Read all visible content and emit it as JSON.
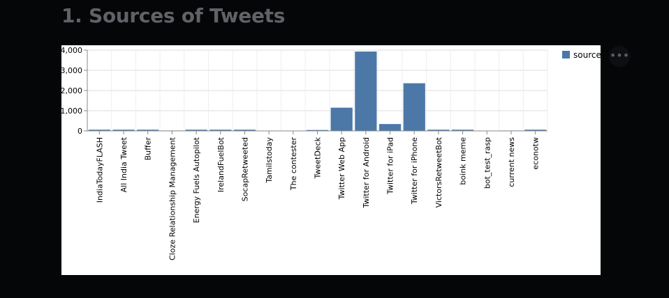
{
  "page": {
    "heading": "1. Sources of Tweets",
    "menu_icon": "more-horizontal-icon",
    "menu_glyph": "•••"
  },
  "chart_data": {
    "type": "bar",
    "title": "",
    "xlabel": "",
    "ylabel": "",
    "ylim": [
      0,
      4000
    ],
    "yticks": [
      0,
      1000,
      2000,
      3000,
      4000
    ],
    "ytick_labels": [
      "0",
      "1,000",
      "2,000",
      "3,000",
      "4,000"
    ],
    "grid": true,
    "legend": {
      "position": "top-right",
      "entries": [
        "source"
      ]
    },
    "bar_color": "#4c78a8",
    "categories": [
      "IndiaTodayFLASH",
      "All India Tweet",
      "Buffer",
      "Cloze Relationship Management",
      "Energy Fuels Autopilot",
      "IrelandFuelBot",
      "SocapRetweeted",
      "Tamilstoday",
      "The contester",
      "TweetDeck",
      "Twitter Web App",
      "Twitter for Android",
      "Twitter for iPad",
      "Twitter for iPhone",
      "VictorsRetweetBot",
      "boink meme",
      "bot_test_rasp",
      "current news",
      "econotw"
    ],
    "series": [
      {
        "name": "source",
        "values": [
          60,
          60,
          60,
          20,
          60,
          60,
          60,
          15,
          15,
          45,
          1150,
          3930,
          340,
          2360,
          60,
          60,
          10,
          20,
          60
        ]
      }
    ]
  }
}
